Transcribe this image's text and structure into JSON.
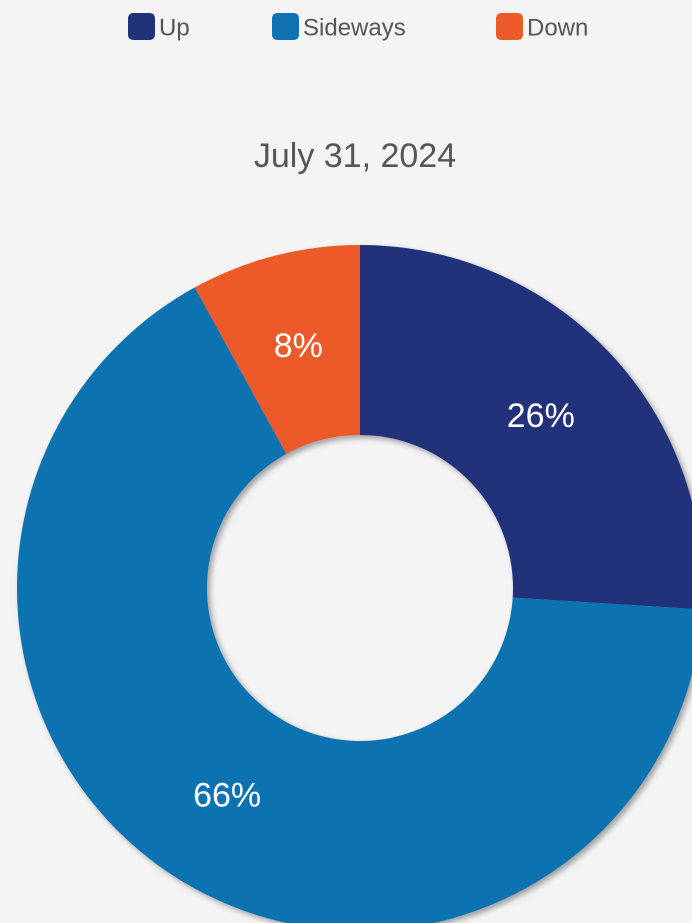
{
  "chart_data": {
    "type": "donut",
    "title": "July 31, 2024",
    "categories": [
      "Up",
      "Sideways",
      "Down"
    ],
    "values": [
      26,
      66,
      8
    ],
    "value_labels": [
      "26%",
      "66%",
      "8%"
    ],
    "colors": [
      "#21327a",
      "#1072b0",
      "#ec5a2a"
    ],
    "legend": "top"
  }
}
